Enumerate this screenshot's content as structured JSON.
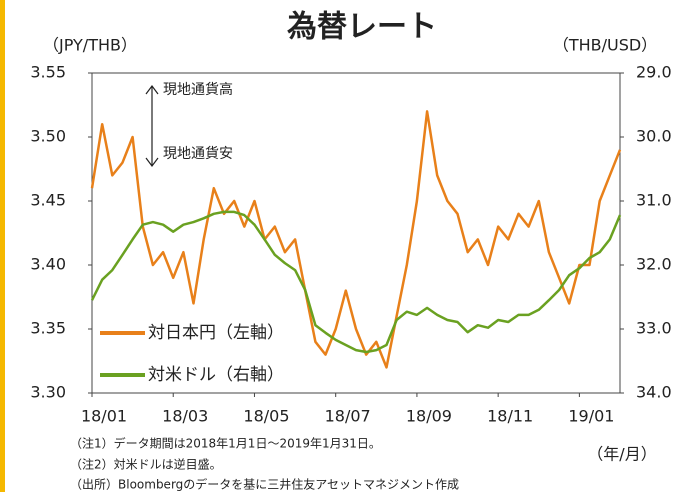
{
  "chart_data": {
    "type": "line",
    "title": "為替レート",
    "y_label": "（JPY/THB）",
    "y2_label": "（THB/USD）",
    "x_label": "（年/月）",
    "annotations": [
      "現地通貨高",
      "現地通貨安"
    ],
    "notes": [
      "（注1）データ期間は2018年1月1日～2019年1月31日。",
      "（注2）対米ドルは逆目盛。",
      "（出所）Bloombergのデータを基に三井住友アセットマネジメント作成"
    ],
    "x": [
      0,
      0.25,
      0.5,
      0.75,
      1,
      1.25,
      1.5,
      1.75,
      2,
      2.25,
      2.5,
      2.75,
      3,
      3.25,
      3.5,
      3.75,
      4,
      4.25,
      4.5,
      4.75,
      5,
      5.25,
      5.5,
      5.75,
      6,
      6.25,
      6.5,
      6.75,
      7,
      7.25,
      7.5,
      7.75,
      8,
      8.25,
      8.5,
      8.75,
      9,
      9.25,
      9.5,
      9.75,
      10,
      10.25,
      10.5,
      10.75,
      11,
      11.25,
      11.5,
      11.75,
      12,
      12.25,
      12.5,
      12.75,
      13
    ],
    "xlim": [
      0,
      13
    ],
    "xticks": [
      {
        "value": 0,
        "label": "18/01"
      },
      {
        "value": 2,
        "label": "18/03"
      },
      {
        "value": 4,
        "label": "18/05"
      },
      {
        "value": 6,
        "label": "18/07"
      },
      {
        "value": 8,
        "label": "18/09"
      },
      {
        "value": 10,
        "label": "18/11"
      },
      {
        "value": 12,
        "label": "19/01"
      }
    ],
    "ylim": [
      3.3,
      3.55
    ],
    "yticks": [
      {
        "value": 3.3,
        "label": "3.30"
      },
      3.35,
      {
        "value": 3.4,
        "label": "3.40"
      },
      3.45,
      {
        "value": 3.5,
        "label": "3.50"
      },
      3.55
    ],
    "y2lim": [
      34,
      29
    ],
    "y2ticks": [
      {
        "value": 34,
        "label": "34.0"
      },
      {
        "value": 33,
        "label": "33.0"
      },
      {
        "value": 32,
        "label": "32.0"
      },
      {
        "value": 31,
        "label": "31.0"
      },
      {
        "value": 30,
        "label": "30.0"
      },
      {
        "value": 29,
        "label": "29.0"
      }
    ],
    "grid": false,
    "legend": "lower left",
    "series": [
      {
        "name": "対日本円（左軸）",
        "color": "#e8801a",
        "axis": "y",
        "values": [
          3.46,
          3.51,
          3.47,
          3.48,
          3.5,
          3.43,
          3.4,
          3.41,
          3.39,
          3.41,
          3.37,
          3.42,
          3.46,
          3.44,
          3.45,
          3.43,
          3.45,
          3.42,
          3.43,
          3.41,
          3.42,
          3.38,
          3.34,
          3.33,
          3.35,
          3.38,
          3.35,
          3.33,
          3.34,
          3.32,
          3.36,
          3.4,
          3.45,
          3.52,
          3.47,
          3.45,
          3.44,
          3.41,
          3.42,
          3.4,
          3.43,
          3.42,
          3.44,
          3.43,
          3.45,
          3.41,
          3.39,
          3.37,
          3.4,
          3.4,
          3.45,
          3.47,
          3.49
        ]
      },
      {
        "name": "対米ドル（右軸）",
        "color": "#6aa121",
        "axis": "y2",
        "values": [
          32.55,
          32.23,
          32.08,
          31.84,
          31.6,
          31.37,
          31.33,
          31.37,
          31.48,
          31.37,
          31.33,
          31.27,
          31.2,
          31.17,
          31.17,
          31.22,
          31.37,
          31.6,
          31.84,
          31.97,
          32.08,
          32.39,
          32.94,
          33.06,
          33.17,
          33.25,
          33.33,
          33.36,
          33.33,
          33.25,
          32.86,
          32.73,
          32.78,
          32.67,
          32.78,
          32.86,
          32.89,
          33.05,
          32.94,
          32.98,
          32.86,
          32.89,
          32.78,
          32.78,
          32.7,
          32.55,
          32.39,
          32.16,
          32.05,
          31.89,
          31.8,
          31.6,
          31.22
        ]
      }
    ]
  }
}
